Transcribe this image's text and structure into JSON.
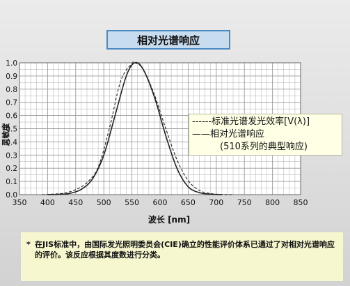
{
  "chart_data": {
    "type": "line",
    "title": "相对光谱响应",
    "xlabel": "波长 [nm]",
    "ylabel": "灵敏度",
    "xlim": [
      350,
      850
    ],
    "ylim": [
      0.0,
      1.0
    ],
    "x_ticks": [
      "350",
      "400",
      "450",
      "500",
      "550",
      "600",
      "650",
      "700",
      "750",
      "800",
      "850"
    ],
    "y_ticks": [
      "0.0",
      "0.1",
      "0.2",
      "0.3",
      "0.4",
      "0.5",
      "0.6",
      "0.7",
      "0.8",
      "0.9",
      "1.0"
    ],
    "grid": true,
    "legend": {
      "line1": "------标准光谱发光效率[V(λ)]",
      "line2": "——相对光谱响应",
      "line3": "(510系列的典型响应)"
    },
    "series": [
      {
        "name": "标准光谱发光效率[V(λ)]",
        "style": "dashed",
        "x": [
          390,
          410,
          430,
          450,
          470,
          490,
          510,
          530,
          550,
          555,
          570,
          590,
          610,
          630,
          650,
          670,
          690,
          710,
          730
        ],
        "y": [
          0.0,
          0.004,
          0.012,
          0.038,
          0.091,
          0.208,
          0.503,
          0.862,
          0.995,
          1.0,
          0.952,
          0.757,
          0.503,
          0.265,
          0.107,
          0.032,
          0.008,
          0.002,
          0.0
        ]
      },
      {
        "name": "相对光谱响应",
        "style": "solid",
        "x": [
          400,
          420,
          440,
          460,
          480,
          500,
          520,
          540,
          555,
          570,
          590,
          610,
          630,
          650,
          670,
          690,
          710
        ],
        "y": [
          0.0,
          0.002,
          0.01,
          0.04,
          0.12,
          0.3,
          0.6,
          0.9,
          1.0,
          0.95,
          0.74,
          0.45,
          0.2,
          0.06,
          0.015,
          0.003,
          0.0
        ]
      }
    ]
  },
  "note": {
    "mark": "*",
    "text": "在JIS标准中，由国际发光照明委员会(CIE)确立的性能评价体系已通过了对相对光谱响应的评价。该反应根据其度数进行分类。"
  },
  "colors": {
    "plot_bg": "#ffffff",
    "grid": "#9a9a9a",
    "curve": "#222222"
  }
}
